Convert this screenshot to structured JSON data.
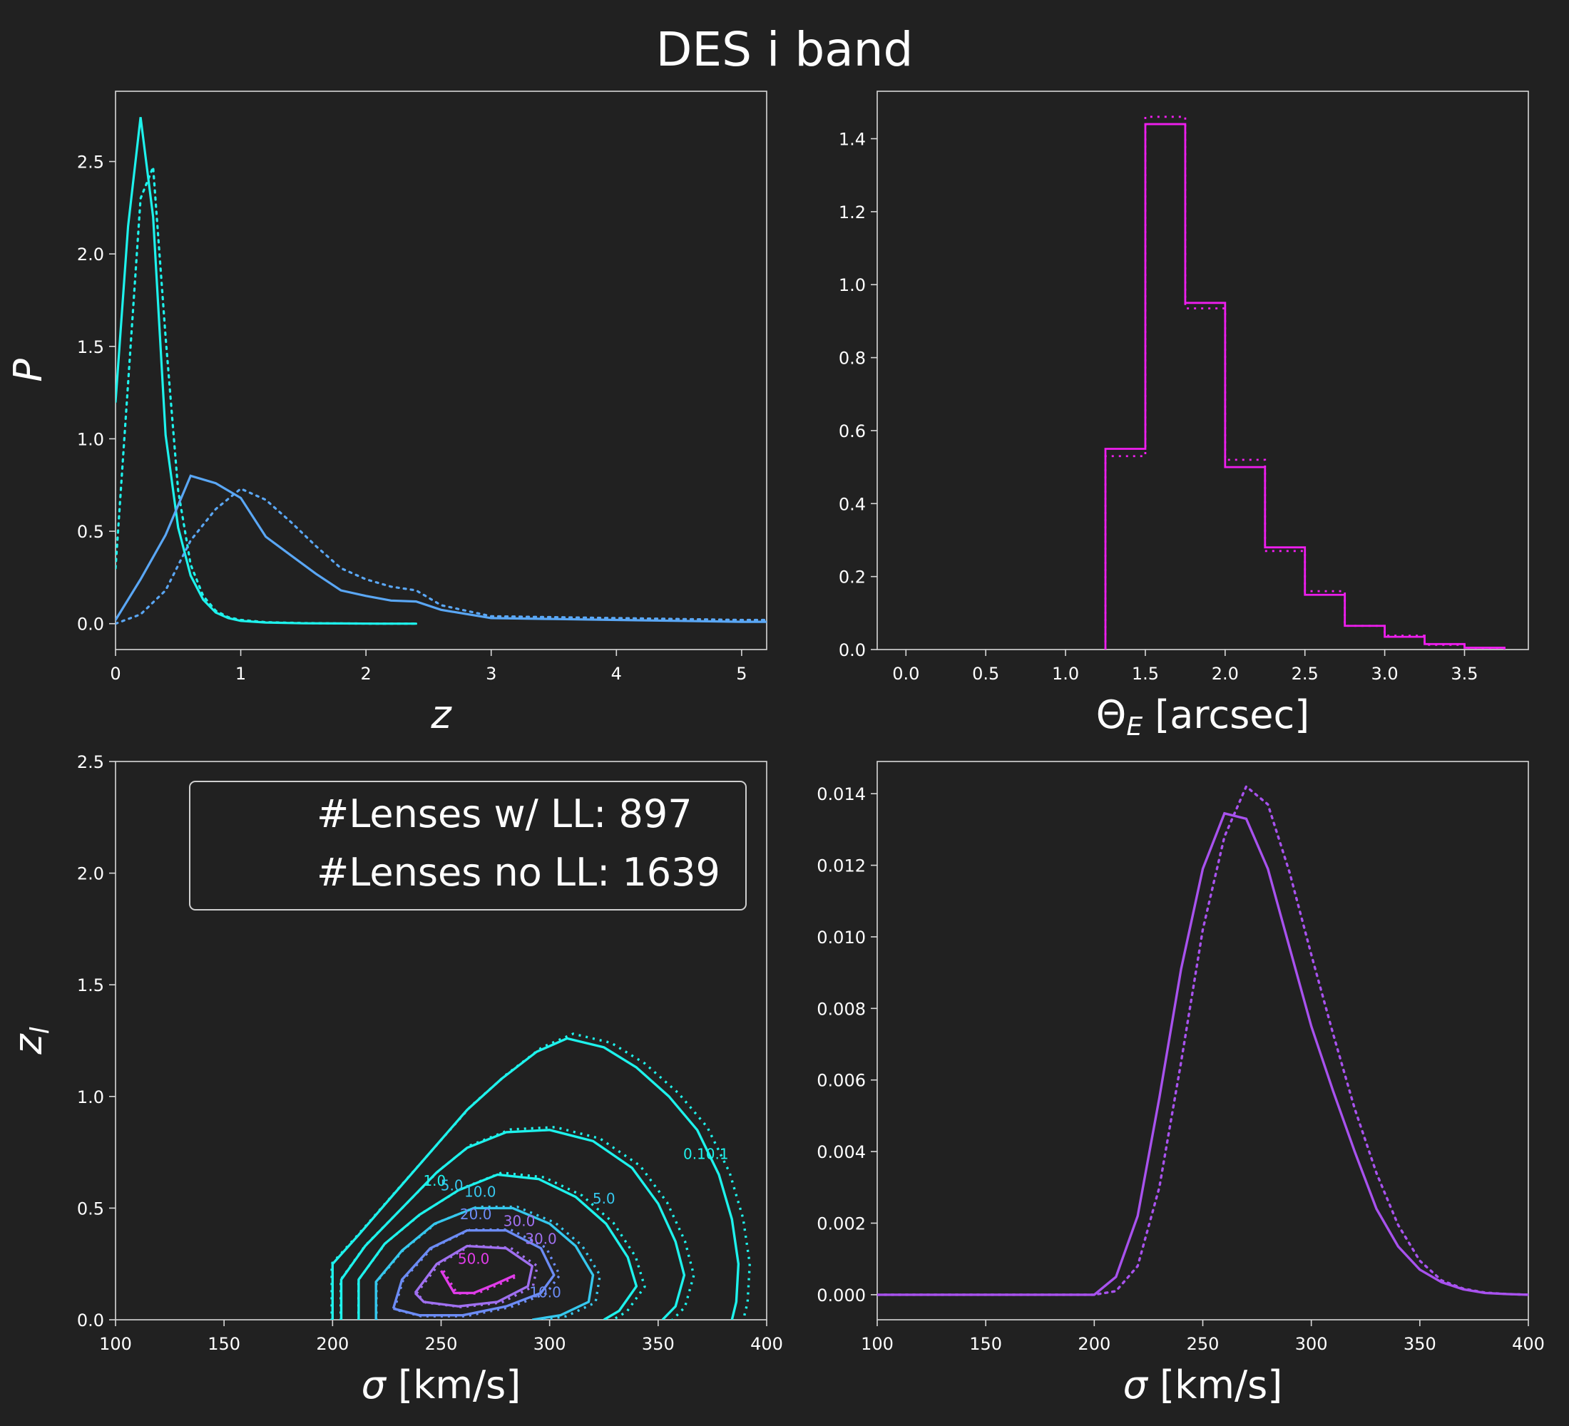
{
  "title": "DES i band",
  "colors": {
    "background": "#212121",
    "axes": "#d8d8d8",
    "text": "#ffffff",
    "cyan": "#1ef2ec",
    "blue": "#5aa7f5",
    "magenta": "#ee1eee",
    "purple": "#a852ee",
    "contour_blue": "#6c8cf5",
    "contour_purple": "#a070f0",
    "contour_pink": "#e03ce8"
  },
  "chart_data": [
    {
      "id": "redshift",
      "type": "line",
      "xlabel": "z",
      "ylabel": "P",
      "xlim": [
        0,
        5.2
      ],
      "ylim": [
        -0.14,
        2.88
      ],
      "xticks": [
        0,
        1,
        2,
        3,
        4,
        5
      ],
      "yticks": [
        0.0,
        0.5,
        1.0,
        1.5,
        2.0,
        2.5
      ],
      "series": [
        {
          "color": "#1ef2ec",
          "style": "solid",
          "x": [
            0,
            0.1,
            0.2,
            0.3,
            0.4,
            0.5,
            0.6,
            0.7,
            0.8,
            0.9,
            1.0,
            1.2,
            1.5,
            1.8,
            2.1,
            2.4
          ],
          "y": [
            1.2,
            2.15,
            2.74,
            2.2,
            1.02,
            0.52,
            0.26,
            0.13,
            0.06,
            0.03,
            0.015,
            0.006,
            0.002,
            0.001,
            0.0,
            0.0
          ]
        },
        {
          "color": "#1ef2ec",
          "style": "dotted",
          "x": [
            0,
            0.1,
            0.2,
            0.3,
            0.4,
            0.5,
            0.6,
            0.7,
            0.8,
            0.9,
            1.0,
            1.2,
            1.5,
            1.8,
            2.1,
            2.4
          ],
          "y": [
            0.3,
            1.3,
            2.3,
            2.47,
            1.55,
            0.72,
            0.32,
            0.15,
            0.07,
            0.035,
            0.02,
            0.008,
            0.003,
            0.001,
            0.0,
            0.0
          ]
        },
        {
          "color": "#5aa7f5",
          "style": "solid",
          "x": [
            0,
            0.2,
            0.4,
            0.6,
            0.8,
            1.0,
            1.2,
            1.4,
            1.6,
            1.8,
            2.0,
            2.2,
            2.4,
            2.6,
            3.0,
            3.5,
            4.0,
            4.5,
            5.0,
            5.2
          ],
          "y": [
            0.02,
            0.24,
            0.48,
            0.8,
            0.76,
            0.68,
            0.47,
            0.37,
            0.27,
            0.18,
            0.15,
            0.125,
            0.12,
            0.075,
            0.03,
            0.025,
            0.02,
            0.015,
            0.01,
            0.01
          ]
        },
        {
          "color": "#5aa7f5",
          "style": "dotted",
          "x": [
            0,
            0.2,
            0.4,
            0.6,
            0.8,
            1.0,
            1.2,
            1.4,
            1.6,
            1.8,
            2.0,
            2.2,
            2.4,
            2.6,
            3.0,
            3.5,
            4.0,
            4.5,
            5.0,
            5.2
          ],
          "y": [
            0.0,
            0.05,
            0.18,
            0.45,
            0.62,
            0.73,
            0.67,
            0.55,
            0.42,
            0.3,
            0.24,
            0.2,
            0.18,
            0.1,
            0.04,
            0.035,
            0.03,
            0.025,
            0.02,
            0.02
          ]
        }
      ]
    },
    {
      "id": "einstein-radius",
      "type": "histogram",
      "xlabel": "Θ_E [arcsec]",
      "xlim": [
        -0.18,
        3.9
      ],
      "ylim": [
        0,
        1.53
      ],
      "xticks": [
        0.0,
        0.5,
        1.0,
        1.5,
        2.0,
        2.5,
        3.0,
        3.5
      ],
      "yticks": [
        0.0,
        0.2,
        0.4,
        0.6,
        0.8,
        1.0,
        1.2,
        1.4
      ],
      "bin_edges": [
        1.25,
        1.5,
        1.75,
        2.0,
        2.25,
        2.5,
        2.75,
        3.0,
        3.25,
        3.5,
        3.75
      ],
      "series": [
        {
          "color": "#ee1eee",
          "style": "solid",
          "values": [
            0.55,
            1.44,
            0.95,
            0.5,
            0.28,
            0.15,
            0.065,
            0.035,
            0.015,
            0.005
          ]
        },
        {
          "color": "#ee1eee",
          "style": "dotted",
          "values": [
            0.53,
            1.46,
            0.935,
            0.52,
            0.27,
            0.16,
            0.065,
            0.038,
            0.013,
            0.004
          ]
        }
      ]
    },
    {
      "id": "sigma-zl-contours",
      "type": "contour",
      "xlabel": "σ [km/s]",
      "ylabel": "z_l",
      "xlim": [
        100,
        400
      ],
      "ylim": [
        0,
        2.5
      ],
      "xticks": [
        100,
        150,
        200,
        250,
        300,
        350,
        400
      ],
      "yticks": [
        0.0,
        0.5,
        1.0,
        1.5,
        2.0,
        2.5
      ],
      "legend": {
        "lines": [
          "#Lenses w/ LL: 897",
          "#Lenses no LL: 1639"
        ],
        "position": "upper-right"
      },
      "contours": [
        {
          "level": "0.1",
          "color": "#1ef2ec",
          "points": [
            [
              200,
              0
            ],
            [
              200,
              0.25
            ],
            [
              212,
              0.38
            ],
            [
              228,
              0.56
            ],
            [
              245,
              0.75
            ],
            [
              262,
              0.94
            ],
            [
              278,
              1.08
            ],
            [
              294,
              1.2
            ],
            [
              308,
              1.26
            ],
            [
              325,
              1.22
            ],
            [
              340,
              1.13
            ],
            [
              355,
              1.0
            ],
            [
              368,
              0.85
            ],
            [
              378,
              0.65
            ],
            [
              384,
              0.45
            ],
            [
              387,
              0.25
            ],
            [
              386,
              0.08
            ],
            [
              384,
              0
            ]
          ]
        },
        {
          "level": "1.0",
          "color": "#1ef2ec",
          "points": [
            [
              204,
              0
            ],
            [
              204,
              0.18
            ],
            [
              215,
              0.33
            ],
            [
              230,
              0.48
            ],
            [
              248,
              0.66
            ],
            [
              262,
              0.77
            ],
            [
              280,
              0.84
            ],
            [
              300,
              0.85
            ],
            [
              320,
              0.8
            ],
            [
              338,
              0.68
            ],
            [
              350,
              0.52
            ],
            [
              358,
              0.35
            ],
            [
              362,
              0.2
            ],
            [
              358,
              0.06
            ],
            [
              352,
              0
            ]
          ]
        },
        {
          "level": "5.0",
          "color": "#1ef2ec",
          "points": [
            [
              212,
              0
            ],
            [
              212,
              0.18
            ],
            [
              224,
              0.34
            ],
            [
              240,
              0.47
            ],
            [
              258,
              0.58
            ],
            [
              276,
              0.65
            ],
            [
              295,
              0.63
            ],
            [
              312,
              0.55
            ],
            [
              326,
              0.43
            ],
            [
              336,
              0.28
            ],
            [
              340,
              0.15
            ],
            [
              332,
              0.04
            ],
            [
              325,
              0
            ]
          ]
        },
        {
          "level": "10.0",
          "color": "#36c8ee",
          "points": [
            [
              220,
              0
            ],
            [
              220,
              0.17
            ],
            [
              232,
              0.31
            ],
            [
              247,
              0.43
            ],
            [
              265,
              0.5
            ],
            [
              283,
              0.5
            ],
            [
              300,
              0.43
            ],
            [
              312,
              0.33
            ],
            [
              320,
              0.2
            ],
            [
              318,
              0.08
            ],
            [
              305,
              0.02
            ],
            [
              292,
              0
            ]
          ]
        },
        {
          "level": "20.0",
          "color": "#6c8cf5",
          "points": [
            [
              228,
              0.05
            ],
            [
              232,
              0.18
            ],
            [
              245,
              0.32
            ],
            [
              262,
              0.4
            ],
            [
              280,
              0.4
            ],
            [
              296,
              0.32
            ],
            [
              302,
              0.2
            ],
            [
              296,
              0.12
            ],
            [
              280,
              0.06
            ],
            [
              260,
              0.02
            ],
            [
              240,
              0.02
            ],
            [
              228,
              0.05
            ]
          ]
        },
        {
          "level": "30.0",
          "color": "#a070f0",
          "points": [
            [
              238,
              0.12
            ],
            [
              248,
              0.25
            ],
            [
              262,
              0.33
            ],
            [
              280,
              0.32
            ],
            [
              292,
              0.24
            ],
            [
              290,
              0.15
            ],
            [
              276,
              0.08
            ],
            [
              258,
              0.06
            ],
            [
              242,
              0.08
            ],
            [
              238,
              0.12
            ]
          ]
        },
        {
          "level": "50.0",
          "color": "#e03ce8",
          "points": [
            [
              250,
              0.22
            ],
            [
              256,
              0.12
            ],
            [
              265,
              0.12
            ],
            [
              275,
              0.16
            ],
            [
              284,
              0.2
            ]
          ]
        }
      ],
      "contour_labels": [
        {
          "text": "1.0",
          "x": 247,
          "y": 0.6,
          "color": "#1ef2ec"
        },
        {
          "text": "5.0",
          "x": 255,
          "y": 0.58,
          "color": "#36c8ee"
        },
        {
          "text": "10.0",
          "x": 268,
          "y": 0.55,
          "color": "#36c8ee"
        },
        {
          "text": "5.0",
          "x": 325,
          "y": 0.52,
          "color": "#36c8ee"
        },
        {
          "text": "0.10.1",
          "x": 372,
          "y": 0.72,
          "color": "#1ef2ec"
        },
        {
          "text": "20.0",
          "x": 266,
          "y": 0.45,
          "color": "#6c8cf5"
        },
        {
          "text": "30.0",
          "x": 286,
          "y": 0.42,
          "color": "#a070f0"
        },
        {
          "text": "30.0",
          "x": 296,
          "y": 0.34,
          "color": "#a070f0"
        },
        {
          "text": "50.0",
          "x": 265,
          "y": 0.25,
          "color": "#e03ce8"
        },
        {
          "text": "10.0",
          "x": 298,
          "y": 0.1,
          "color": "#6c8cf5"
        }
      ]
    },
    {
      "id": "sigma-distribution",
      "type": "line",
      "xlabel": "σ [km/s]",
      "xlim": [
        100,
        400
      ],
      "ylim": [
        -0.0007,
        0.0149
      ],
      "xticks": [
        100,
        150,
        200,
        250,
        300,
        350,
        400
      ],
      "yticks": [
        0.0,
        0.002,
        0.004,
        0.006,
        0.008,
        0.01,
        0.012,
        0.014
      ],
      "ytick_labels": [
        "0.000",
        "0.002",
        "0.004",
        "0.006",
        "0.008",
        "0.010",
        "0.012",
        "0.014"
      ],
      "series": [
        {
          "color": "#a852ee",
          "style": "solid",
          "x": [
            100,
            150,
            200,
            210,
            220,
            230,
            240,
            250,
            260,
            270,
            280,
            290,
            300,
            310,
            320,
            330,
            340,
            350,
            360,
            370,
            380,
            390,
            400
          ],
          "y": [
            0,
            0,
            0,
            0.0005,
            0.0022,
            0.0055,
            0.0091,
            0.0119,
            0.01345,
            0.0133,
            0.0119,
            0.0097,
            0.0075,
            0.0057,
            0.004,
            0.0024,
            0.00135,
            0.0007,
            0.00035,
            0.00015,
            5e-05,
            2e-05,
            0
          ]
        },
        {
          "color": "#a852ee",
          "style": "dotted",
          "x": [
            100,
            150,
            200,
            210,
            220,
            230,
            240,
            250,
            260,
            270,
            280,
            290,
            300,
            310,
            320,
            330,
            340,
            350,
            360,
            370,
            380,
            390,
            400
          ],
          "y": [
            0,
            0,
            0,
            0.0001,
            0.0008,
            0.003,
            0.0065,
            0.0102,
            0.0128,
            0.0142,
            0.0137,
            0.0118,
            0.0095,
            0.0073,
            0.0052,
            0.0034,
            0.00195,
            0.00095,
            0.0004,
            0.00017,
            6e-05,
            2e-05,
            0
          ]
        }
      ]
    }
  ]
}
